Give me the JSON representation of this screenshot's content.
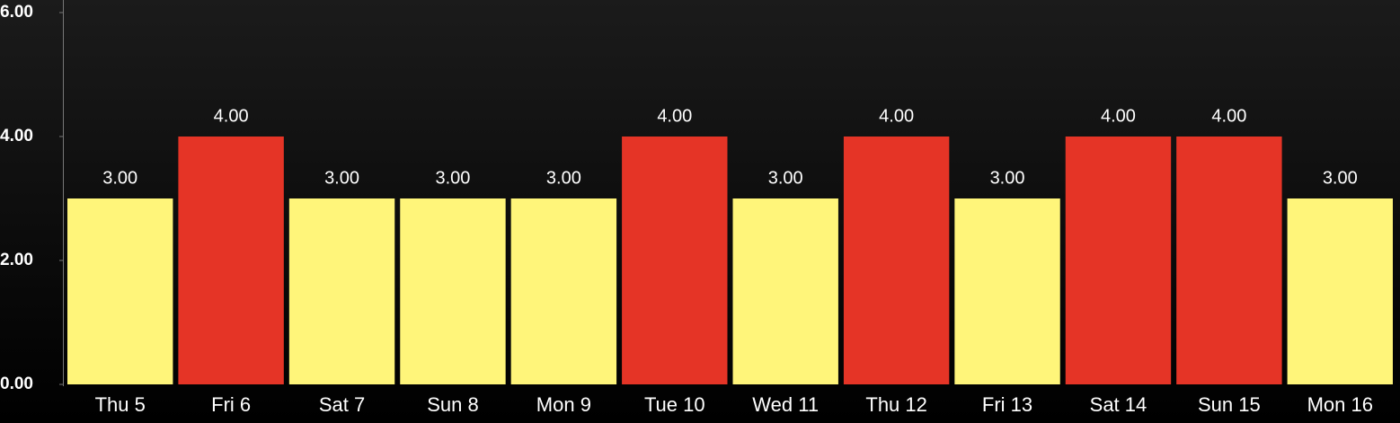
{
  "chart_data": {
    "type": "bar",
    "categories": [
      "Thu 5",
      "Fri 6",
      "Sat 7",
      "Sun 8",
      "Mon 9",
      "Tue 10",
      "Wed 11",
      "Thu 12",
      "Fri 13",
      "Sat 14",
      "Sun 15",
      "Mon 16"
    ],
    "values": [
      3,
      4,
      3,
      3,
      3,
      4,
      3,
      4,
      3,
      4,
      4,
      3
    ],
    "value_labels": [
      "3.00",
      "4.00",
      "3.00",
      "3.00",
      "3.00",
      "4.00",
      "3.00",
      "4.00",
      "3.00",
      "4.00",
      "4.00",
      "3.00"
    ],
    "colors": [
      "#fff57a",
      "#e53426",
      "#fff57a",
      "#fff57a",
      "#fff57a",
      "#e53426",
      "#fff57a",
      "#e53426",
      "#fff57a",
      "#e53426",
      "#e53426",
      "#fff57a"
    ],
    "ylim": [
      0,
      6
    ],
    "yticks": [
      {
        "value": 0,
        "label": "0.00"
      },
      {
        "value": 2,
        "label": "2.00"
      },
      {
        "value": 4,
        "label": "4.00"
      },
      {
        "value": 6,
        "label": "6.00"
      }
    ]
  }
}
